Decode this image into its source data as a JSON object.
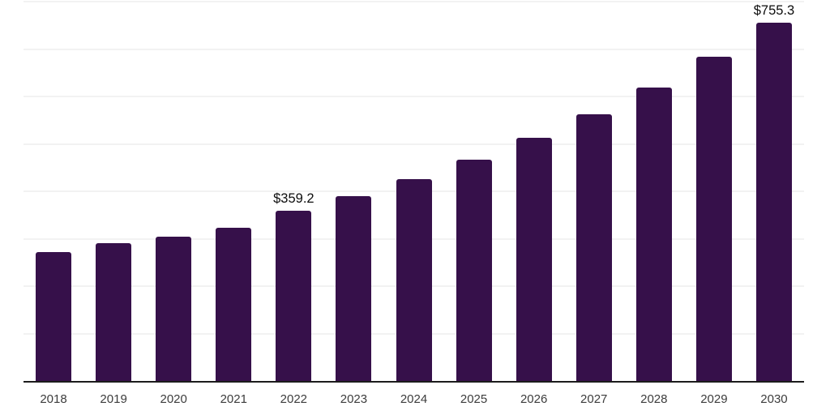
{
  "chart_data": {
    "type": "bar",
    "title": "",
    "xlabel": "",
    "ylabel": "",
    "categories": [
      "2018",
      "2019",
      "2020",
      "2021",
      "2022",
      "2023",
      "2024",
      "2025",
      "2026",
      "2027",
      "2028",
      "2029",
      "2030"
    ],
    "values": [
      271.0,
      291.4,
      305.1,
      323.8,
      359.2,
      390.3,
      426.1,
      466.1,
      512.1,
      562.4,
      618.6,
      683.4,
      755.3
    ],
    "labeled_points": [
      {
        "category": "2022",
        "label": "$359.2"
      },
      {
        "category": "2030",
        "label": "$755.3"
      }
    ],
    "ylim": [
      0,
      800
    ],
    "gridline_interval": 100,
    "grid_on": true,
    "legend": "none",
    "colors": {
      "bar": "#36104a",
      "gridline": "#f2f2f2",
      "axis_line": "#1c1c1c",
      "tick_label": "#3c3c3c",
      "value_label": "#0d0d0d",
      "background": "#ffffff"
    }
  }
}
